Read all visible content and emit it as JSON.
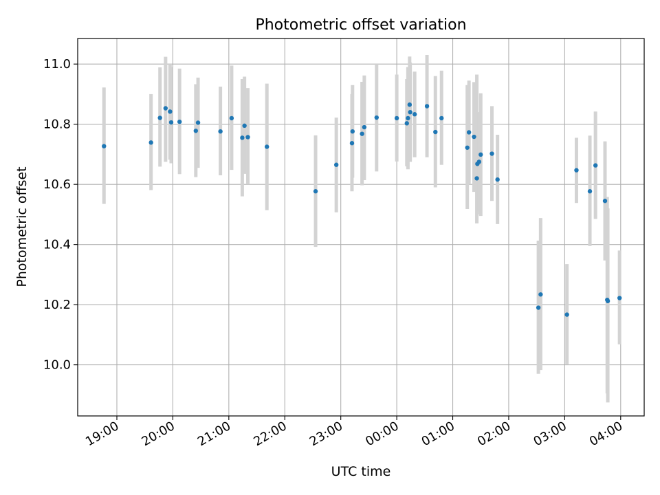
{
  "chart_data": {
    "type": "scatter",
    "title": "Photometric offset variation",
    "xlabel": "UTC time",
    "ylabel": "Photometric offset",
    "x_unit": "hours since 00:00 UTC",
    "xlim": [
      -5.7,
      4.42
    ],
    "ylim": [
      9.83,
      11.085
    ],
    "x_ticks": [
      {
        "value": -5,
        "label": "19:00"
      },
      {
        "value": -4,
        "label": "20:00"
      },
      {
        "value": -3,
        "label": "21:00"
      },
      {
        "value": -2,
        "label": "22:00"
      },
      {
        "value": -1,
        "label": "23:00"
      },
      {
        "value": 0,
        "label": "00:00"
      },
      {
        "value": 1,
        "label": "01:00"
      },
      {
        "value": 2,
        "label": "02:00"
      },
      {
        "value": 3,
        "label": "03:00"
      },
      {
        "value": 4,
        "label": "04:00"
      }
    ],
    "y_ticks": [
      {
        "value": 10.0,
        "label": "10.0"
      },
      {
        "value": 10.2,
        "label": "10.2"
      },
      {
        "value": 10.4,
        "label": "10.4"
      },
      {
        "value": 10.6,
        "label": "10.6"
      },
      {
        "value": 10.8,
        "label": "10.8"
      },
      {
        "value": 11.0,
        "label": "11.0"
      }
    ],
    "grid": true,
    "marker_color": "#1f77b4",
    "errorbar_color": "#d3d3d3",
    "series": [
      {
        "name": "offset",
        "points": [
          {
            "x": -5.23,
            "y": 10.727,
            "lo": 10.535,
            "hi": 10.922
          },
          {
            "x": -4.39,
            "y": 10.739,
            "lo": 10.581,
            "hi": 10.9
          },
          {
            "x": -4.23,
            "y": 10.821,
            "lo": 10.659,
            "hi": 10.989
          },
          {
            "x": -4.13,
            "y": 10.853,
            "lo": 10.675,
            "hi": 11.024
          },
          {
            "x": -4.05,
            "y": 10.842,
            "lo": 10.682,
            "hi": 11.0
          },
          {
            "x": -4.03,
            "y": 10.806,
            "lo": 10.67,
            "hi": 10.99
          },
          {
            "x": -3.88,
            "y": 10.808,
            "lo": 10.634,
            "hi": 10.985
          },
          {
            "x": -3.59,
            "y": 10.778,
            "lo": 10.624,
            "hi": 10.933
          },
          {
            "x": -3.55,
            "y": 10.805,
            "lo": 10.655,
            "hi": 10.955
          },
          {
            "x": -3.15,
            "y": 10.776,
            "lo": 10.63,
            "hi": 10.925
          },
          {
            "x": -2.95,
            "y": 10.82,
            "lo": 10.648,
            "hi": 10.995
          },
          {
            "x": -2.76,
            "y": 10.755,
            "lo": 10.56,
            "hi": 10.95
          },
          {
            "x": -2.72,
            "y": 10.795,
            "lo": 10.635,
            "hi": 10.958
          },
          {
            "x": -2.66,
            "y": 10.757,
            "lo": 10.6,
            "hi": 10.92
          },
          {
            "x": -2.32,
            "y": 10.725,
            "lo": 10.514,
            "hi": 10.935
          },
          {
            "x": -1.45,
            "y": 10.577,
            "lo": 10.392,
            "hi": 10.763
          },
          {
            "x": -1.08,
            "y": 10.665,
            "lo": 10.507,
            "hi": 10.822
          },
          {
            "x": -0.8,
            "y": 10.737,
            "lo": 10.577,
            "hi": 10.9
          },
          {
            "x": -0.79,
            "y": 10.776,
            "lo": 10.622,
            "hi": 10.93
          },
          {
            "x": -0.62,
            "y": 10.768,
            "lo": 10.597,
            "hi": 10.941
          },
          {
            "x": -0.58,
            "y": 10.79,
            "lo": 10.614,
            "hi": 10.962
          },
          {
            "x": -0.36,
            "y": 10.822,
            "lo": 10.643,
            "hi": 11.0
          },
          {
            "x": 0.0,
            "y": 10.82,
            "lo": 10.676,
            "hi": 10.965
          },
          {
            "x": 0.18,
            "y": 10.803,
            "lo": 10.66,
            "hi": 10.95
          },
          {
            "x": 0.2,
            "y": 10.82,
            "lo": 10.65,
            "hi": 10.99
          },
          {
            "x": 0.23,
            "y": 10.865,
            "lo": 10.705,
            "hi": 11.025
          },
          {
            "x": 0.24,
            "y": 10.84,
            "lo": 10.675,
            "hi": 11.005
          },
          {
            "x": 0.32,
            "y": 10.833,
            "lo": 10.69,
            "hi": 10.975
          },
          {
            "x": 0.54,
            "y": 10.86,
            "lo": 10.69,
            "hi": 11.03
          },
          {
            "x": 0.69,
            "y": 10.774,
            "lo": 10.59,
            "hi": 10.96
          },
          {
            "x": 0.8,
            "y": 10.82,
            "lo": 10.665,
            "hi": 10.978
          },
          {
            "x": 1.26,
            "y": 10.722,
            "lo": 10.518,
            "hi": 10.93
          },
          {
            "x": 1.29,
            "y": 10.773,
            "lo": 10.6,
            "hi": 10.945
          },
          {
            "x": 1.38,
            "y": 10.758,
            "lo": 10.575,
            "hi": 10.94
          },
          {
            "x": 1.43,
            "y": 10.62,
            "lo": 10.47,
            "hi": 10.965
          },
          {
            "x": 1.44,
            "y": 10.668,
            "lo": 10.5,
            "hi": 10.83
          },
          {
            "x": 1.47,
            "y": 10.675,
            "lo": 10.51,
            "hi": 10.84
          },
          {
            "x": 1.5,
            "y": 10.699,
            "lo": 10.495,
            "hi": 10.903
          },
          {
            "x": 1.7,
            "y": 10.702,
            "lo": 10.545,
            "hi": 10.86
          },
          {
            "x": 1.8,
            "y": 10.616,
            "lo": 10.468,
            "hi": 10.765
          },
          {
            "x": 2.53,
            "y": 10.19,
            "lo": 9.97,
            "hi": 10.413
          },
          {
            "x": 2.57,
            "y": 10.234,
            "lo": 9.983,
            "hi": 10.488
          },
          {
            "x": 3.04,
            "y": 10.167,
            "lo": 10.002,
            "hi": 10.335
          },
          {
            "x": 3.21,
            "y": 10.647,
            "lo": 10.538,
            "hi": 10.755
          },
          {
            "x": 3.45,
            "y": 10.577,
            "lo": 10.395,
            "hi": 10.762
          },
          {
            "x": 3.55,
            "y": 10.663,
            "lo": 10.485,
            "hi": 10.842
          },
          {
            "x": 3.72,
            "y": 10.545,
            "lo": 10.347,
            "hi": 10.743
          },
          {
            "x": 3.76,
            "y": 10.216,
            "lo": 9.905,
            "hi": 10.558
          },
          {
            "x": 3.77,
            "y": 10.212,
            "lo": 9.875,
            "hi": 10.52
          },
          {
            "x": 3.98,
            "y": 10.222,
            "lo": 10.068,
            "hi": 10.38
          }
        ]
      }
    ]
  }
}
